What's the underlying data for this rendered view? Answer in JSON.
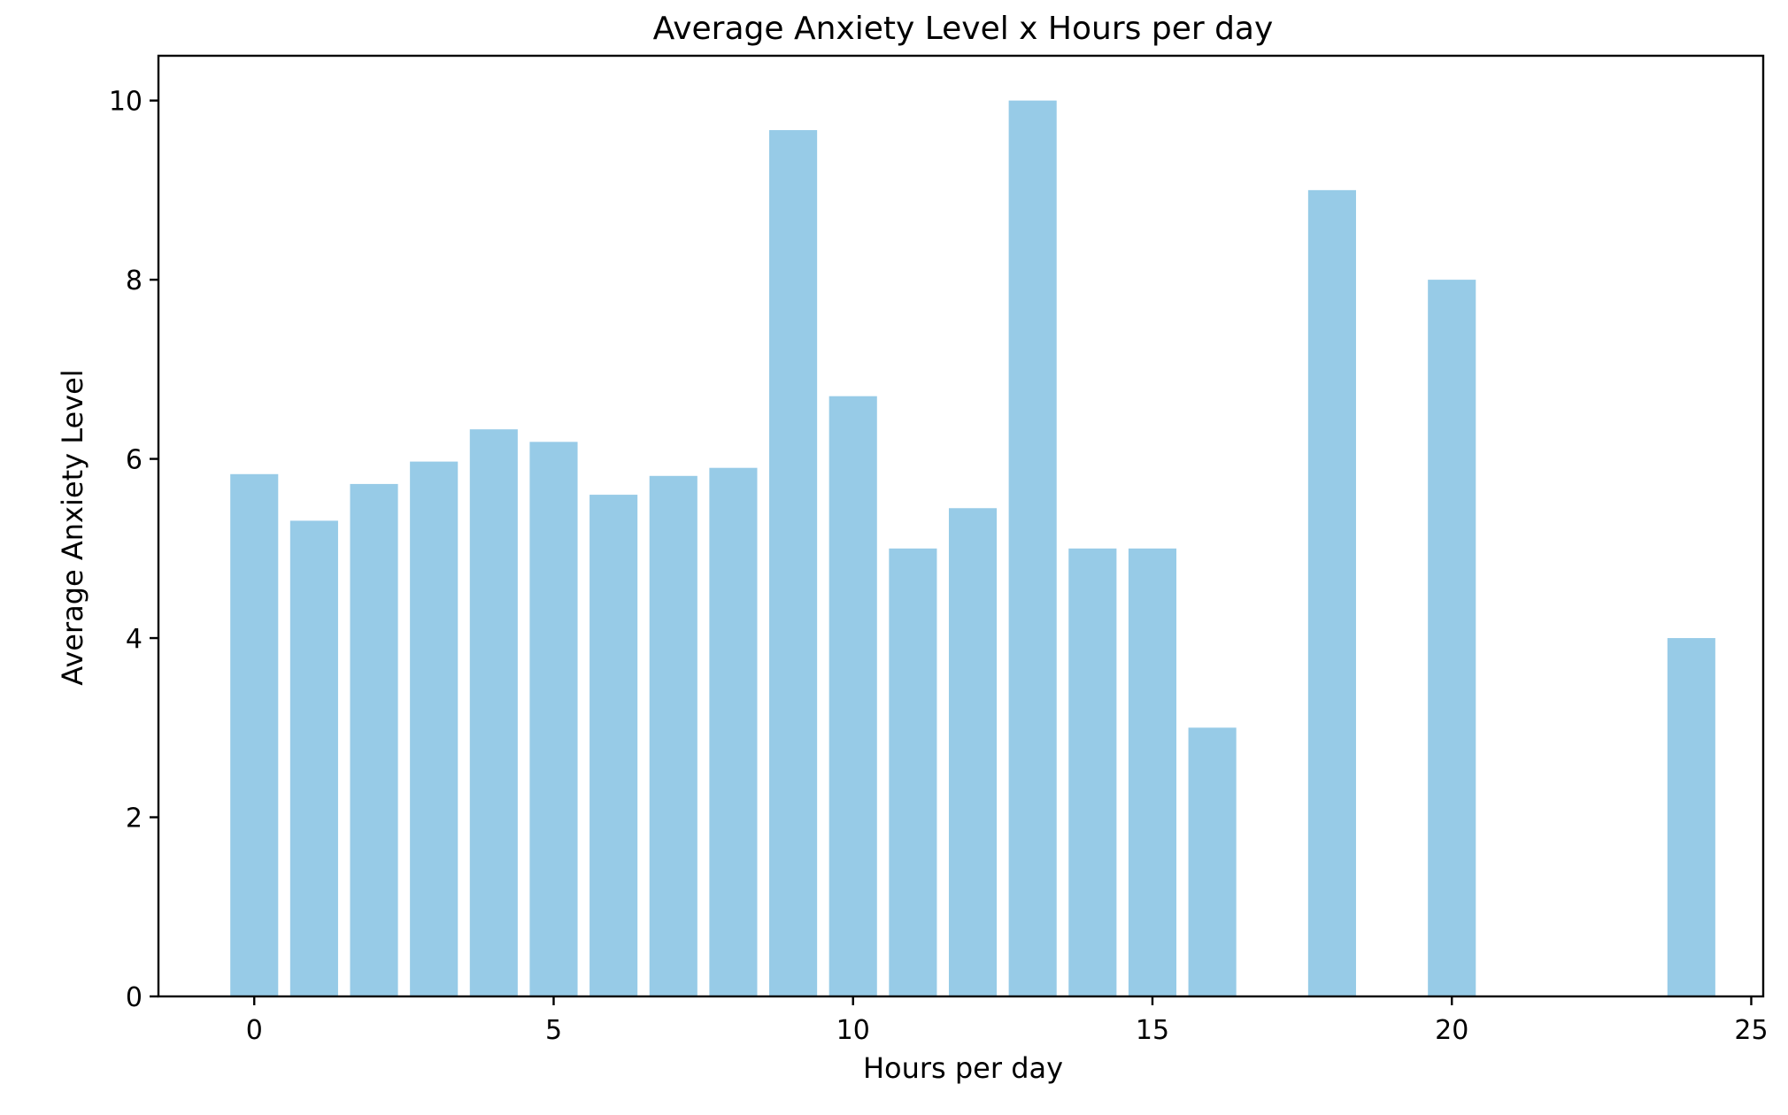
{
  "chart_data": {
    "type": "bar",
    "title": "Average Anxiety Level x Hours per day",
    "xlabel": "Hours per day",
    "ylabel": "Average Anxiety Level",
    "x": [
      0,
      1,
      2,
      3,
      4,
      5,
      6,
      7,
      8,
      9,
      10,
      11,
      12,
      13,
      14,
      15,
      16,
      18,
      20,
      24
    ],
    "values": [
      5.83,
      5.31,
      5.72,
      5.97,
      6.33,
      6.19,
      5.6,
      5.81,
      5.9,
      9.67,
      6.7,
      5.0,
      5.45,
      10.0,
      5.0,
      5.0,
      3.0,
      9.0,
      8.0,
      4.0
    ],
    "xlim": [
      -1.6,
      25.2
    ],
    "ylim": [
      0,
      10.5
    ],
    "xticks": [
      0,
      5,
      10,
      15,
      20,
      25
    ],
    "yticks": [
      0,
      2,
      4,
      6,
      8,
      10
    ],
    "bar_color": "#97cbe7",
    "grid": false,
    "legend": "none"
  }
}
